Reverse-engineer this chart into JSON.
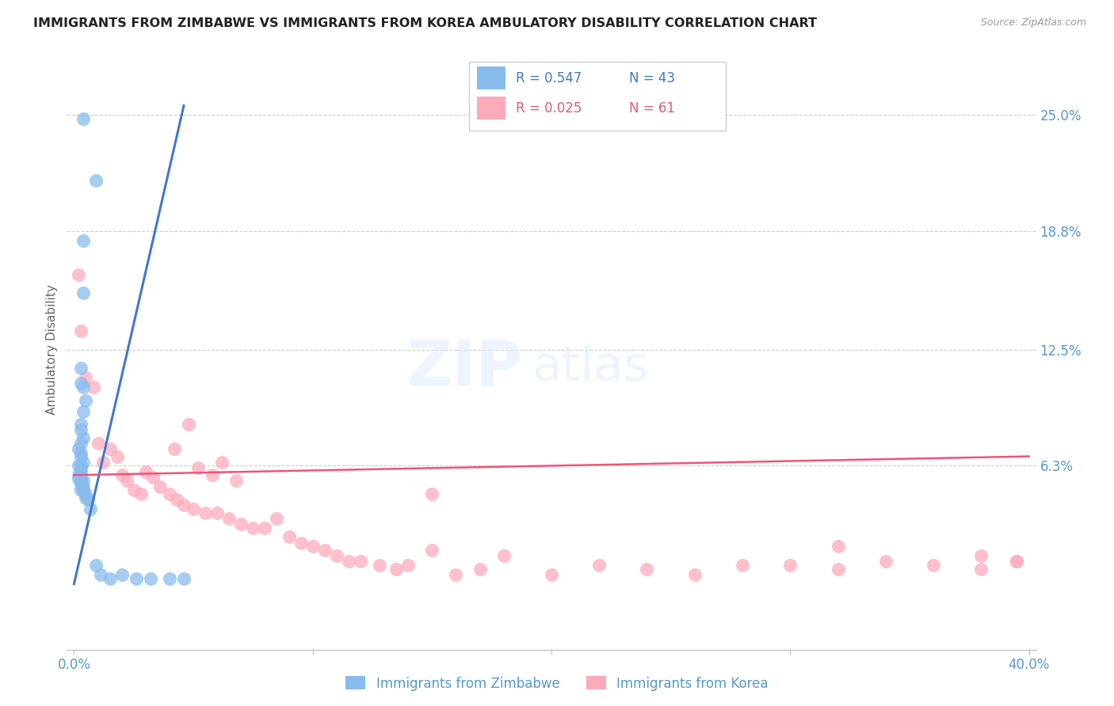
{
  "title": "IMMIGRANTS FROM ZIMBABWE VS IMMIGRANTS FROM KOREA AMBULATORY DISABILITY CORRELATION CHART",
  "source": "Source: ZipAtlas.com",
  "ylabel": "Ambulatory Disability",
  "ytick_labels": [
    "25.0%",
    "18.8%",
    "12.5%",
    "6.3%"
  ],
  "ytick_values": [
    0.25,
    0.188,
    0.125,
    0.063
  ],
  "xlim": [
    -0.003,
    0.403
  ],
  "ylim": [
    -0.035,
    0.285
  ],
  "watermark_zip": "ZIP",
  "watermark_atlas": "atlas",
  "legend_blue_r": "R = 0.547",
  "legend_blue_n": "N = 43",
  "legend_pink_r": "R = 0.025",
  "legend_pink_n": "N = 61",
  "color_blue": "#88BBEE",
  "color_pink": "#FFAABB",
  "color_blue_line": "#4477CC",
  "color_pink_line": "#EE5577",
  "color_title": "#222222",
  "color_axis_labels": "#5599CC",
  "color_grid": "#CCCCCC",
  "zimbabwe_x": [
    0.004,
    0.009,
    0.004,
    0.003,
    0.003,
    0.004,
    0.005,
    0.004,
    0.003,
    0.003,
    0.004,
    0.003,
    0.002,
    0.003,
    0.003,
    0.004,
    0.003,
    0.002,
    0.003,
    0.003,
    0.002,
    0.003,
    0.002,
    0.003,
    0.003,
    0.004,
    0.003,
    0.004,
    0.003,
    0.004,
    0.005,
    0.005,
    0.006,
    0.007,
    0.009,
    0.011,
    0.015,
    0.02,
    0.026,
    0.032,
    0.04,
    0.046,
    0.004
  ],
  "zimbabwe_y": [
    0.248,
    0.215,
    0.155,
    0.115,
    0.107,
    0.105,
    0.098,
    0.092,
    0.085,
    0.082,
    0.078,
    0.075,
    0.072,
    0.07,
    0.068,
    0.065,
    0.063,
    0.063,
    0.062,
    0.06,
    0.058,
    0.058,
    0.056,
    0.055,
    0.055,
    0.055,
    0.053,
    0.052,
    0.05,
    0.05,
    0.048,
    0.046,
    0.045,
    0.04,
    0.01,
    0.005,
    0.003,
    0.005,
    0.003,
    0.003,
    0.003,
    0.003,
    0.183
  ],
  "korea_x": [
    0.002,
    0.003,
    0.005,
    0.008,
    0.01,
    0.012,
    0.015,
    0.018,
    0.02,
    0.022,
    0.025,
    0.028,
    0.03,
    0.033,
    0.036,
    0.04,
    0.043,
    0.046,
    0.05,
    0.055,
    0.06,
    0.065,
    0.07,
    0.075,
    0.08,
    0.085,
    0.09,
    0.095,
    0.1,
    0.105,
    0.11,
    0.115,
    0.12,
    0.128,
    0.135,
    0.14,
    0.15,
    0.16,
    0.17,
    0.18,
    0.2,
    0.22,
    0.24,
    0.26,
    0.28,
    0.3,
    0.32,
    0.34,
    0.36,
    0.38,
    0.395,
    0.042,
    0.048,
    0.052,
    0.058,
    0.062,
    0.068,
    0.15,
    0.32,
    0.38,
    0.395
  ],
  "korea_y": [
    0.165,
    0.135,
    0.11,
    0.105,
    0.075,
    0.065,
    0.072,
    0.068,
    0.058,
    0.055,
    0.05,
    0.048,
    0.06,
    0.057,
    0.052,
    0.048,
    0.045,
    0.042,
    0.04,
    0.038,
    0.038,
    0.035,
    0.032,
    0.03,
    0.03,
    0.035,
    0.025,
    0.022,
    0.02,
    0.018,
    0.015,
    0.012,
    0.012,
    0.01,
    0.008,
    0.01,
    0.018,
    0.005,
    0.008,
    0.015,
    0.005,
    0.01,
    0.008,
    0.005,
    0.01,
    0.01,
    0.008,
    0.012,
    0.01,
    0.008,
    0.012,
    0.072,
    0.085,
    0.062,
    0.058,
    0.065,
    0.055,
    0.048,
    0.02,
    0.015,
    0.012
  ],
  "zim_line_x": [
    0.0,
    0.046
  ],
  "zim_line_y": [
    0.0,
    0.255
  ],
  "kor_line_x": [
    0.0,
    0.4
  ],
  "kor_line_y": [
    0.058,
    0.068
  ]
}
